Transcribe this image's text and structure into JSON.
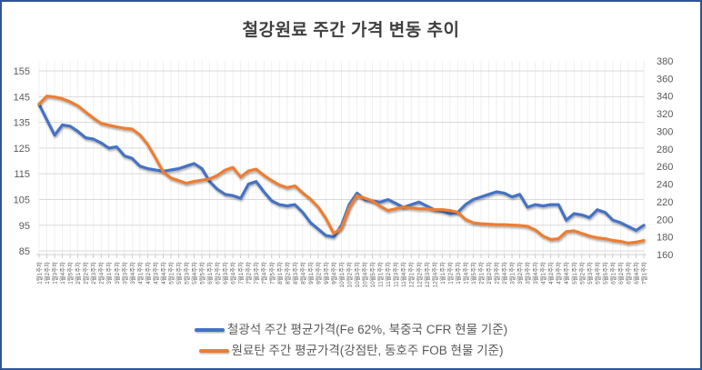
{
  "title": "철강원료 주간 가격 변동 추이",
  "colors": {
    "iron_ore_line": "#4472C4",
    "coking_coal_line": "#ED7D31",
    "axis_label": "#595959",
    "title_text": "#3f3f3f",
    "gridline_major": "#D9D9D9",
    "gridline_minor": "#ECECEC",
    "axis_line": "#BFBFBF",
    "frame_border": "#2F5597"
  },
  "chart_data": {
    "type": "line",
    "title": "철강원료 주간 가격 변동 추이",
    "grid": {
      "horizontal": true,
      "vertical": true
    },
    "legend_position": "bottom",
    "x_axis": {
      "tick_label_rotation": -90,
      "tick_labels": [
        "1월1주차",
        "1월2주차",
        "1월3주차",
        "1월4주차",
        "1월5주차",
        "2월1주차",
        "2월2주차",
        "2월3주차",
        "2월4주차",
        "3월1주차",
        "3월2주차",
        "3월3주차",
        "3월4주차",
        "4월1주차",
        "4월2주차",
        "4월3주차",
        "4월4주차",
        "5월1주차",
        "5월2주차",
        "5월3주차",
        "5월4주차",
        "5월5주차",
        "6월1주차",
        "6월2주차",
        "6월3주차",
        "6월4주차",
        "7월1주차",
        "7월2주차",
        "7월3주차",
        "7월4주차",
        "7월5주차",
        "8월1주차",
        "8월2주차",
        "8월3주차",
        "8월4주차",
        "9월1주차",
        "9월2주차",
        "9월3주차",
        "9월4주차",
        "10월1주차",
        "10월2주차",
        "10월3주차",
        "10월4주차",
        "10월5주차",
        "11월1주차",
        "11월2주차",
        "11월3주차",
        "11월4주차",
        "12월1주차",
        "12월2주차",
        "12월3주차",
        "12월4주차",
        "1월1주차",
        "1월2주차",
        "1월3주차",
        "1월4주차",
        "1월5주차",
        "2월1주차",
        "2월2주차",
        "2월3주차",
        "2월4주차",
        "3월1주차",
        "3월2주차",
        "3월3주차",
        "3월4주차",
        "4월1주차",
        "4월2주차",
        "4월3주차",
        "4월4주차",
        "5월1주차",
        "5월2주차",
        "5월3주차",
        "5월4주차",
        "5월5주차",
        "6월1주차",
        "6월2주차",
        "6월3주차",
        "6월4주차",
        "7월1주차"
      ]
    },
    "left_y_axis": {
      "ticks": [
        85,
        95,
        105,
        115,
        125,
        135,
        145,
        155
      ],
      "scale_top": 158.9,
      "scale_bottom": 83.6
    },
    "right_y_axis": {
      "ticks": [
        160,
        180,
        200,
        220,
        240,
        260,
        280,
        300,
        320,
        340,
        360,
        380
      ],
      "scale_top": 380,
      "scale_bottom": 160
    },
    "series": [
      {
        "name": "철광석 주간 평균가격(Fe 62%, 북중국 CFR 현물 기준)",
        "axis": "left",
        "color": "#4472C4",
        "values": [
          142,
          136,
          130,
          134,
          133.5,
          131.5,
          129,
          128.5,
          127,
          125,
          125.5,
          122,
          121,
          118,
          117,
          116.5,
          116,
          116.5,
          117,
          118,
          119,
          117,
          112,
          109,
          107,
          106.5,
          105.5,
          111,
          112,
          108,
          104.5,
          103,
          102.5,
          103,
          100,
          96,
          93.5,
          91,
          90.5,
          95,
          103,
          107.5,
          105,
          104.5,
          104,
          105,
          103.5,
          102,
          103,
          104,
          102.5,
          101,
          100.5,
          99.5,
          100,
          103,
          105,
          106,
          107,
          108,
          107.5,
          106,
          107,
          102,
          103,
          102.5,
          103,
          103,
          97,
          99.5,
          99,
          98,
          101,
          100,
          97,
          96,
          94.5,
          93,
          95
        ]
      },
      {
        "name": "원료탄 주간 평균가격(강점탄, 동호주 FOB 현물 기준)",
        "axis": "right",
        "color": "#ED7D31",
        "values": [
          331,
          340,
          339,
          337,
          333.5,
          329,
          322,
          315,
          309,
          307,
          305,
          303.5,
          302.5,
          296,
          285,
          270,
          254,
          247,
          244,
          241,
          243,
          244.5,
          246,
          250,
          256,
          259,
          248,
          255,
          257,
          250,
          244,
          239,
          236,
          238,
          230,
          223,
          214,
          201,
          184,
          190,
          213,
          227,
          224,
          221,
          215,
          210,
          212,
          214,
          213,
          212,
          212,
          211,
          211,
          210,
          208,
          200,
          196,
          195,
          194.5,
          194,
          194,
          193.5,
          193,
          192,
          188,
          181,
          177,
          178,
          186,
          187,
          184,
          181,
          179,
          178,
          176,
          175,
          173,
          174,
          176
        ]
      }
    ]
  }
}
